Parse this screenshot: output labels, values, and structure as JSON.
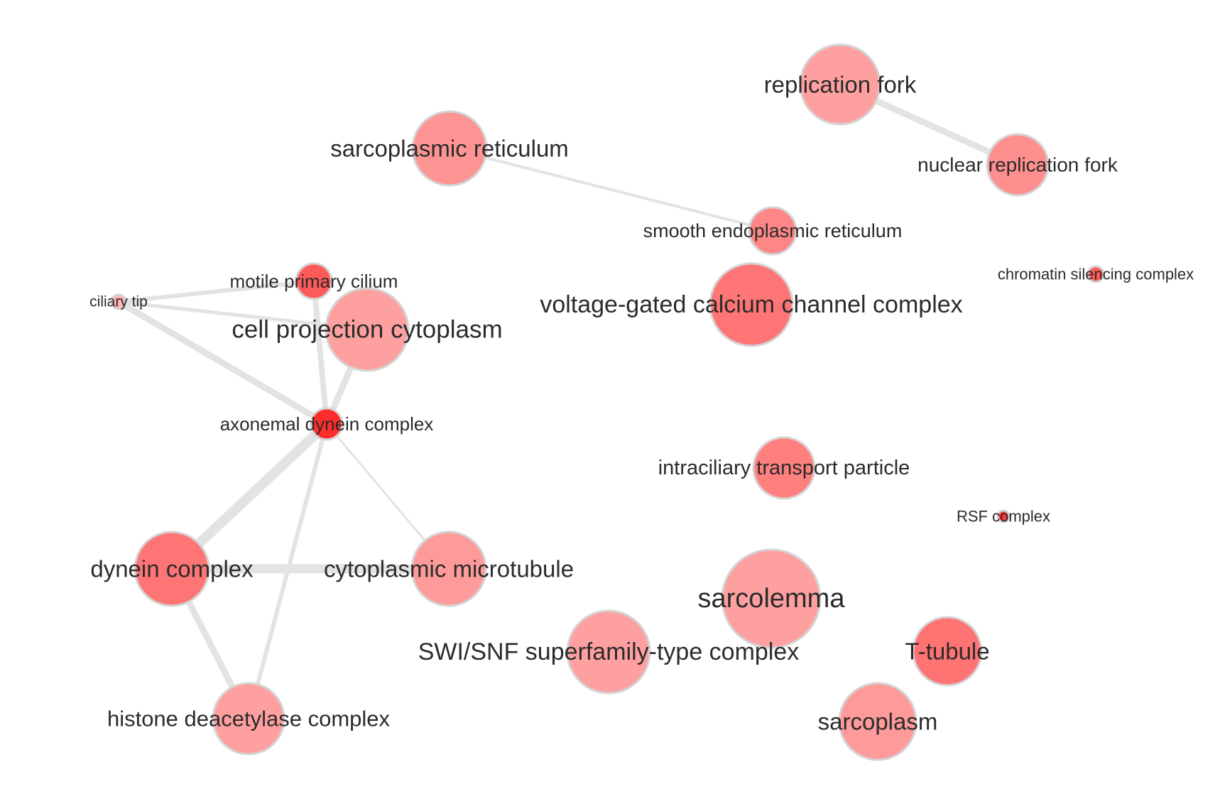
{
  "network": {
    "nodes": [
      {
        "id": "replication-fork",
        "label": "replication fork",
        "color": "#ffa0a0"
      },
      {
        "id": "nuclear-replication-fork",
        "label": "nuclear replication fork",
        "color": "#ff8f8f"
      },
      {
        "id": "sarcoplasmic-reticulum",
        "label": "sarcoplasmic reticulum",
        "color": "#ff9494"
      },
      {
        "id": "smooth-endoplasmic-reticulum",
        "label": "smooth endoplasmic reticulum",
        "color": "#ff8686"
      },
      {
        "id": "chromatin-silencing-complex",
        "label": "chromatin silencing complex",
        "color": "#ff5858"
      },
      {
        "id": "motile-primary-cilium",
        "label": "motile primary cilium",
        "color": "#ff5a5a"
      },
      {
        "id": "ciliary-tip",
        "label": "ciliary tip",
        "color": "#ffb4b4"
      },
      {
        "id": "cell-projection-cytoplasm",
        "label": "cell projection cytoplasm",
        "color": "#ffa0a0"
      },
      {
        "id": "voltage-gated-calcium-channel-complex",
        "label": "voltage-gated calcium channel complex",
        "color": "#ff7474"
      },
      {
        "id": "axonemal-dynein-complex",
        "label": "axonemal dynein complex",
        "color": "#ff2c2c"
      },
      {
        "id": "intraciliary-transport-particle",
        "label": "intraciliary transport particle",
        "color": "#ff7e7e"
      },
      {
        "id": "rsf-complex",
        "label": "RSF complex",
        "color": "#ff3838"
      },
      {
        "id": "dynein-complex",
        "label": "dynein complex",
        "color": "#ff7474"
      },
      {
        "id": "cytoplasmic-microtubule",
        "label": "cytoplasmic microtubule",
        "color": "#ff9a9a"
      },
      {
        "id": "sarcolemma",
        "label": "sarcolemma",
        "color": "#ffa0a0"
      },
      {
        "id": "swi-snf-superfamily-type-complex",
        "label": "SWI/SNF superfamily-type complex",
        "color": "#ffa0a0"
      },
      {
        "id": "t-tubule",
        "label": "T-tubule",
        "color": "#ff7373"
      },
      {
        "id": "histone-deacetylase-complex",
        "label": "histone deacetylase complex",
        "color": "#ffa0a0"
      },
      {
        "id": "sarcoplasm",
        "label": "sarcoplasm",
        "color": "#ff9a9a"
      }
    ],
    "edges": [
      {
        "source": "replication-fork",
        "target": "nuclear-replication-fork"
      },
      {
        "source": "sarcoplasmic-reticulum",
        "target": "smooth-endoplasmic-reticulum"
      },
      {
        "source": "ciliary-tip",
        "target": "motile-primary-cilium"
      },
      {
        "source": "ciliary-tip",
        "target": "cell-projection-cytoplasm"
      },
      {
        "source": "ciliary-tip",
        "target": "axonemal-dynein-complex"
      },
      {
        "source": "motile-primary-cilium",
        "target": "axonemal-dynein-complex"
      },
      {
        "source": "cell-projection-cytoplasm",
        "target": "axonemal-dynein-complex"
      },
      {
        "source": "axonemal-dynein-complex",
        "target": "dynein-complex"
      },
      {
        "source": "axonemal-dynein-complex",
        "target": "cytoplasmic-microtubule"
      },
      {
        "source": "axonemal-dynein-complex",
        "target": "histone-deacetylase-complex"
      },
      {
        "source": "dynein-complex",
        "target": "cytoplasmic-microtubule"
      },
      {
        "source": "dynein-complex",
        "target": "histone-deacetylase-complex"
      }
    ]
  }
}
